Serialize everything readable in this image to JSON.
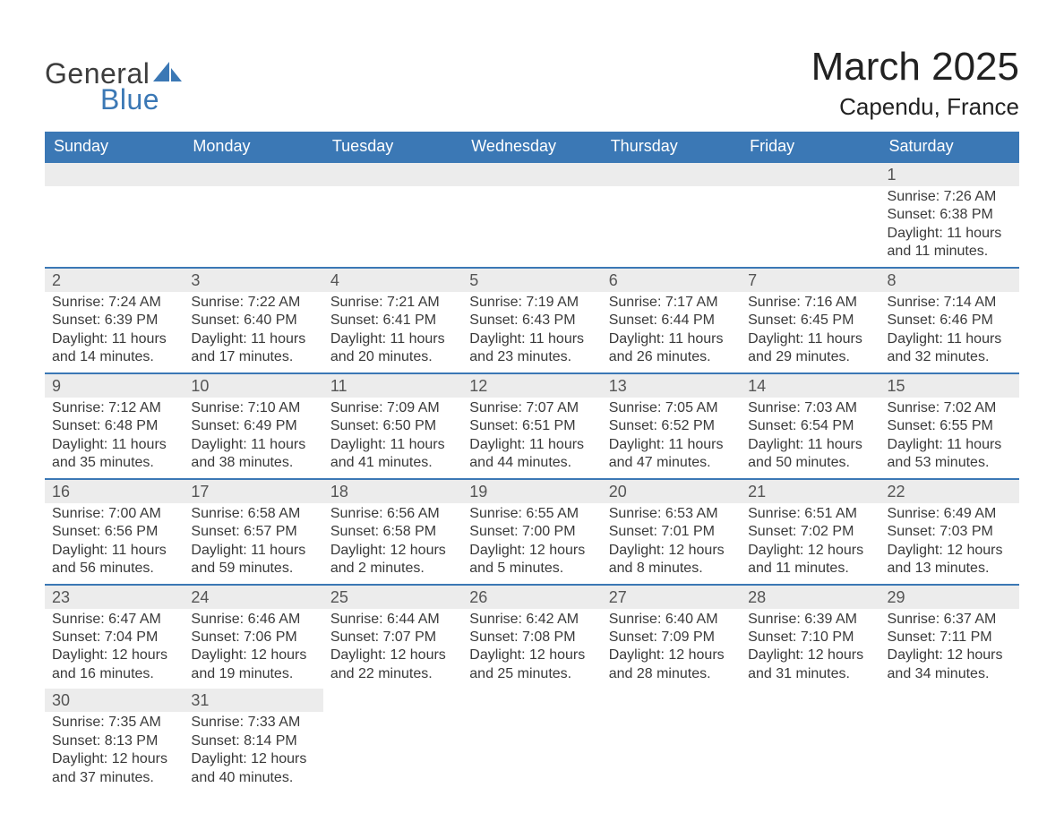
{
  "brand": {
    "word1": "General",
    "word2": "Blue"
  },
  "title": "March 2025",
  "location": "Capendu, France",
  "colors": {
    "header_bg": "#3b78b5",
    "header_text": "#ffffff",
    "strip_bg": "#ececec",
    "border": "#3b78b5",
    "text": "#3a3a3a",
    "daynum": "#555555"
  },
  "dayNames": [
    "Sunday",
    "Monday",
    "Tuesday",
    "Wednesday",
    "Thursday",
    "Friday",
    "Saturday"
  ],
  "weeks": [
    [
      null,
      null,
      null,
      null,
      null,
      null,
      {
        "n": "1",
        "sr": "Sunrise: 7:26 AM",
        "ss": "Sunset: 6:38 PM",
        "dl": "Daylight: 11 hours and 11 minutes."
      }
    ],
    [
      {
        "n": "2",
        "sr": "Sunrise: 7:24 AM",
        "ss": "Sunset: 6:39 PM",
        "dl": "Daylight: 11 hours and 14 minutes."
      },
      {
        "n": "3",
        "sr": "Sunrise: 7:22 AM",
        "ss": "Sunset: 6:40 PM",
        "dl": "Daylight: 11 hours and 17 minutes."
      },
      {
        "n": "4",
        "sr": "Sunrise: 7:21 AM",
        "ss": "Sunset: 6:41 PM",
        "dl": "Daylight: 11 hours and 20 minutes."
      },
      {
        "n": "5",
        "sr": "Sunrise: 7:19 AM",
        "ss": "Sunset: 6:43 PM",
        "dl": "Daylight: 11 hours and 23 minutes."
      },
      {
        "n": "6",
        "sr": "Sunrise: 7:17 AM",
        "ss": "Sunset: 6:44 PM",
        "dl": "Daylight: 11 hours and 26 minutes."
      },
      {
        "n": "7",
        "sr": "Sunrise: 7:16 AM",
        "ss": "Sunset: 6:45 PM",
        "dl": "Daylight: 11 hours and 29 minutes."
      },
      {
        "n": "8",
        "sr": "Sunrise: 7:14 AM",
        "ss": "Sunset: 6:46 PM",
        "dl": "Daylight: 11 hours and 32 minutes."
      }
    ],
    [
      {
        "n": "9",
        "sr": "Sunrise: 7:12 AM",
        "ss": "Sunset: 6:48 PM",
        "dl": "Daylight: 11 hours and 35 minutes."
      },
      {
        "n": "10",
        "sr": "Sunrise: 7:10 AM",
        "ss": "Sunset: 6:49 PM",
        "dl": "Daylight: 11 hours and 38 minutes."
      },
      {
        "n": "11",
        "sr": "Sunrise: 7:09 AM",
        "ss": "Sunset: 6:50 PM",
        "dl": "Daylight: 11 hours and 41 minutes."
      },
      {
        "n": "12",
        "sr": "Sunrise: 7:07 AM",
        "ss": "Sunset: 6:51 PM",
        "dl": "Daylight: 11 hours and 44 minutes."
      },
      {
        "n": "13",
        "sr": "Sunrise: 7:05 AM",
        "ss": "Sunset: 6:52 PM",
        "dl": "Daylight: 11 hours and 47 minutes."
      },
      {
        "n": "14",
        "sr": "Sunrise: 7:03 AM",
        "ss": "Sunset: 6:54 PM",
        "dl": "Daylight: 11 hours and 50 minutes."
      },
      {
        "n": "15",
        "sr": "Sunrise: 7:02 AM",
        "ss": "Sunset: 6:55 PM",
        "dl": "Daylight: 11 hours and 53 minutes."
      }
    ],
    [
      {
        "n": "16",
        "sr": "Sunrise: 7:00 AM",
        "ss": "Sunset: 6:56 PM",
        "dl": "Daylight: 11 hours and 56 minutes."
      },
      {
        "n": "17",
        "sr": "Sunrise: 6:58 AM",
        "ss": "Sunset: 6:57 PM",
        "dl": "Daylight: 11 hours and 59 minutes."
      },
      {
        "n": "18",
        "sr": "Sunrise: 6:56 AM",
        "ss": "Sunset: 6:58 PM",
        "dl": "Daylight: 12 hours and 2 minutes."
      },
      {
        "n": "19",
        "sr": "Sunrise: 6:55 AM",
        "ss": "Sunset: 7:00 PM",
        "dl": "Daylight: 12 hours and 5 minutes."
      },
      {
        "n": "20",
        "sr": "Sunrise: 6:53 AM",
        "ss": "Sunset: 7:01 PM",
        "dl": "Daylight: 12 hours and 8 minutes."
      },
      {
        "n": "21",
        "sr": "Sunrise: 6:51 AM",
        "ss": "Sunset: 7:02 PM",
        "dl": "Daylight: 12 hours and 11 minutes."
      },
      {
        "n": "22",
        "sr": "Sunrise: 6:49 AM",
        "ss": "Sunset: 7:03 PM",
        "dl": "Daylight: 12 hours and 13 minutes."
      }
    ],
    [
      {
        "n": "23",
        "sr": "Sunrise: 6:47 AM",
        "ss": "Sunset: 7:04 PM",
        "dl": "Daylight: 12 hours and 16 minutes."
      },
      {
        "n": "24",
        "sr": "Sunrise: 6:46 AM",
        "ss": "Sunset: 7:06 PM",
        "dl": "Daylight: 12 hours and 19 minutes."
      },
      {
        "n": "25",
        "sr": "Sunrise: 6:44 AM",
        "ss": "Sunset: 7:07 PM",
        "dl": "Daylight: 12 hours and 22 minutes."
      },
      {
        "n": "26",
        "sr": "Sunrise: 6:42 AM",
        "ss": "Sunset: 7:08 PM",
        "dl": "Daylight: 12 hours and 25 minutes."
      },
      {
        "n": "27",
        "sr": "Sunrise: 6:40 AM",
        "ss": "Sunset: 7:09 PM",
        "dl": "Daylight: 12 hours and 28 minutes."
      },
      {
        "n": "28",
        "sr": "Sunrise: 6:39 AM",
        "ss": "Sunset: 7:10 PM",
        "dl": "Daylight: 12 hours and 31 minutes."
      },
      {
        "n": "29",
        "sr": "Sunrise: 6:37 AM",
        "ss": "Sunset: 7:11 PM",
        "dl": "Daylight: 12 hours and 34 minutes."
      }
    ],
    [
      {
        "n": "30",
        "sr": "Sunrise: 7:35 AM",
        "ss": "Sunset: 8:13 PM",
        "dl": "Daylight: 12 hours and 37 minutes."
      },
      {
        "n": "31",
        "sr": "Sunrise: 7:33 AM",
        "ss": "Sunset: 8:14 PM",
        "dl": "Daylight: 12 hours and 40 minutes."
      },
      null,
      null,
      null,
      null,
      null
    ]
  ]
}
